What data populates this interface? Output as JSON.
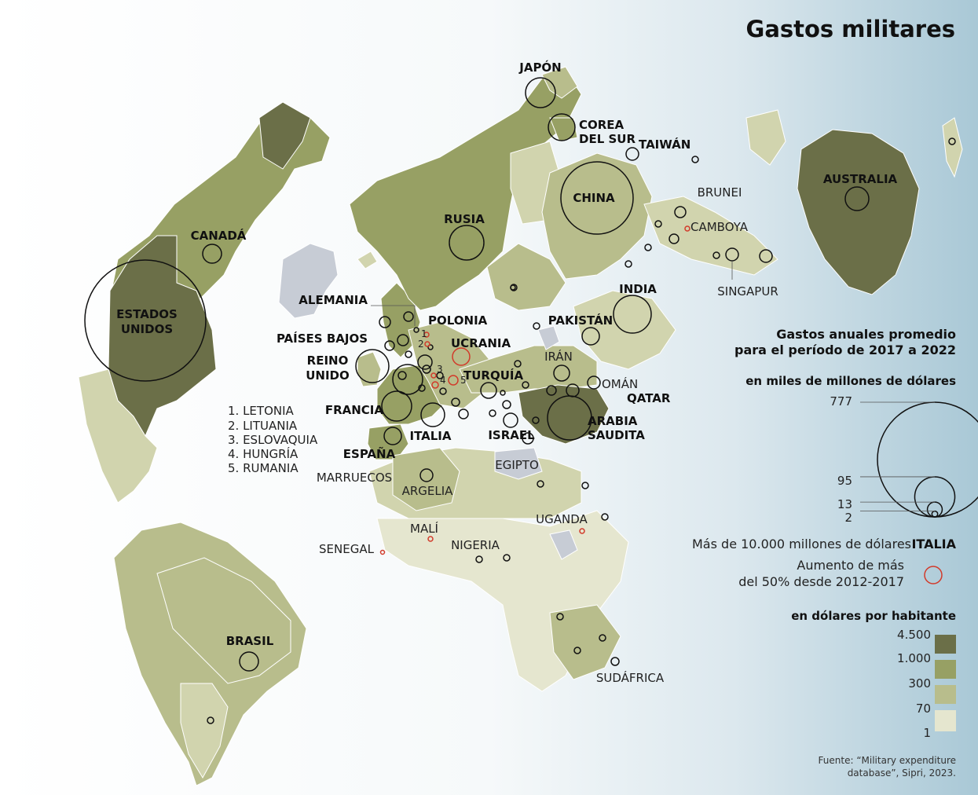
{
  "title": "Gastos militares",
  "colors": {
    "ocean_light": "#ffffff",
    "ocean_dark": "#a9c8d6",
    "c4500": "#6b6f48",
    "c1000": "#97a064",
    "c300": "#b8bd8c",
    "c70": "#d1d4ae",
    "c1": "#e5e6cf",
    "nodata": "#c7ccd5",
    "circle": "#111111",
    "increase": "#d23a2a"
  },
  "countries_bold": {
    "usa": "ESTADOS",
    "usa2": "UNIDOS",
    "canada": "CANADÁ",
    "brasil": "BRASIL",
    "rusia": "RUSIA",
    "china": "CHINA",
    "japon": "JAPÓN",
    "corea1": "COREA",
    "corea2": "DEL SUR",
    "taiwan": "TAIWÁN",
    "australia": "AUSTRALIA",
    "india": "INDIA",
    "pakistan": "PAKISTÁN",
    "alemania": "ALEMANIA",
    "polonia": "POLONIA",
    "paises_bajos": "PAÍSES BAJOS",
    "ucrania": "UCRANIA",
    "reino1": "REINO",
    "reino2": "UNIDO",
    "francia": "FRANCIA",
    "turquia": "TURQUÍA",
    "italia": "ITALIA",
    "espana": "ESPAÑA",
    "israel": "ISRAEL",
    "arabia1": "ARABIA",
    "arabia2": "SAUDITA",
    "qatar": "QATAR"
  },
  "countries_regular": {
    "brunei": "BRUNEI",
    "camboya": "CAMBOYA",
    "singapur": "SINGAPUR",
    "iran": "IRÁN",
    "oman": "OMÁN",
    "egipto": "EGIPTO",
    "marruecos": "MARRUECOS",
    "argelia": "ARGELIA",
    "mali": "MALÍ",
    "uganda": "UGANDA",
    "senegal": "SENEGAL",
    "nigeria": "NIGERIA",
    "sudafrica": "SUDÁFRICA"
  },
  "numbered_list": [
    "1. LETONIA",
    "2. LITUANIA",
    "3. ESLOVAQUIA",
    "4. HUNGRÍA",
    "5. RUMANIA"
  ],
  "map_numbers": [
    "1",
    "2",
    "3",
    "4",
    "5"
  ],
  "legend": {
    "heading1": "Gastos anuales promedio",
    "heading2": "para el período de 2017 a 2022",
    "sub_spend": "en miles de millones de dólares",
    "size_ticks": [
      "777",
      "95",
      "13",
      "2"
    ],
    "size_values": [
      777,
      95,
      13,
      2
    ],
    "over10_text": "Más de 10.000 millones de dólares",
    "over10_example": "ITALIA",
    "increase1": "Aumento de más",
    "increase2": "del 50% desde 2012-2017",
    "sub_capita": "en dólares por habitante",
    "capita_ticks": [
      "4.500",
      "1.000",
      "300",
      "70",
      "1"
    ]
  },
  "source1": "Fuente: “Military expenditure",
  "source2": "database”, Sipri, 2023."
}
